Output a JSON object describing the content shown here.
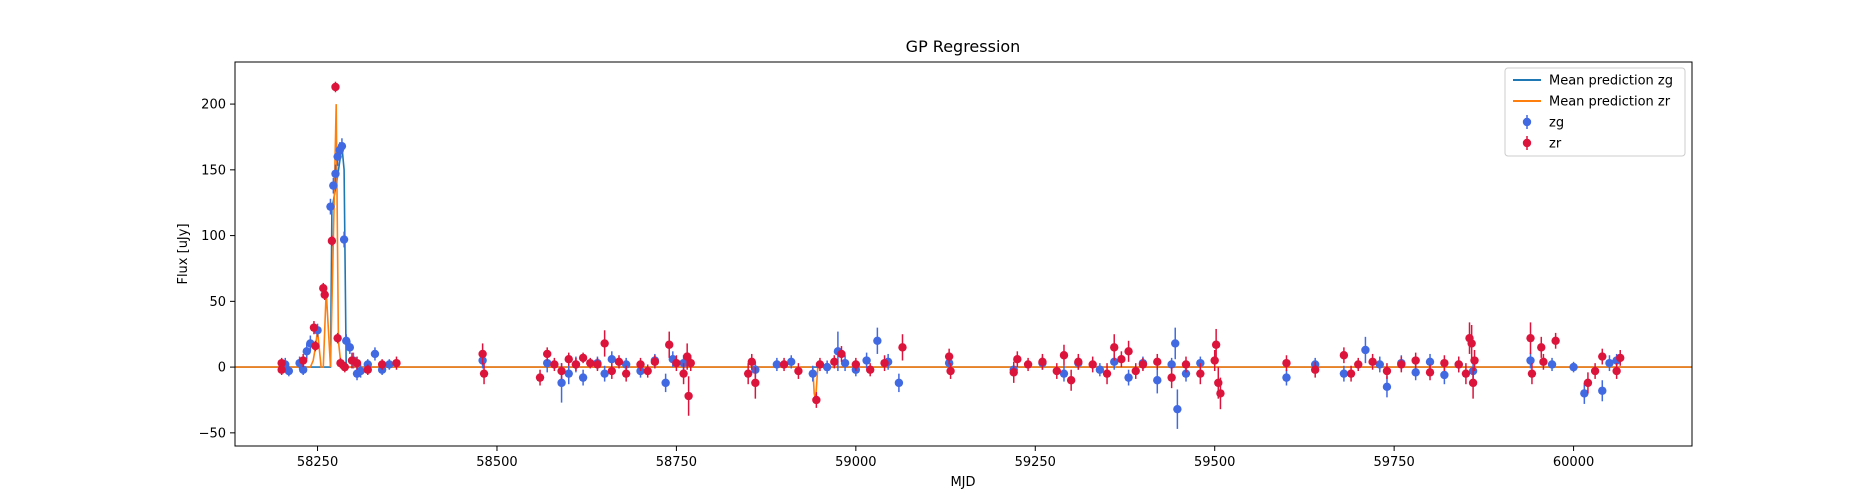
{
  "chart_data": {
    "type": "scatter",
    "title": "GP Regression",
    "xlabel": "MJD",
    "ylabel": "Flux [uJy]",
    "xlim": [
      58135,
      60165
    ],
    "ylim": [
      -60,
      232
    ],
    "xticks": [
      58250,
      58500,
      58750,
      59000,
      59250,
      59500,
      59750,
      60000
    ],
    "yticks": [
      -50,
      0,
      50,
      100,
      150,
      200
    ],
    "legend": {
      "position": "top-right",
      "entries": [
        {
          "label": "Mean prediction zg",
          "kind": "line",
          "color": "#1f77b4"
        },
        {
          "label": "Mean prediction zr",
          "kind": "line",
          "color": "#ff7f0e"
        },
        {
          "label": "zg",
          "kind": "errorbar",
          "color": "#4169e1"
        },
        {
          "label": "zr",
          "kind": "errorbar",
          "color": "#dc143c"
        }
      ]
    },
    "mean_prediction": [
      {
        "name": "Mean prediction zg",
        "color": "#1f77b4",
        "x": [
          58135,
          58268,
          58270,
          58278,
          58284,
          58287,
          58290,
          58292,
          60165
        ],
        "y": [
          0,
          0,
          120,
          145,
          168,
          150,
          0,
          0,
          0
        ]
      },
      {
        "name": "Mean prediction zr",
        "color": "#ff7f0e",
        "x": [
          58135,
          58240,
          58244,
          58247,
          58250,
          58255,
          58258,
          58262,
          58268,
          58272,
          58276,
          58279,
          58283,
          58287,
          58940,
          58942,
          58944,
          58947,
          60165
        ],
        "y": [
          0,
          0,
          5,
          15,
          28,
          0,
          0,
          58,
          0,
          95,
          200,
          20,
          0,
          0,
          0,
          -20,
          -25,
          0,
          0
        ]
      }
    ],
    "series": [
      {
        "name": "zg",
        "color": "#4169e1",
        "points": [
          [
            58205,
            2,
            5
          ],
          [
            58210,
            -3,
            4
          ],
          [
            58225,
            3,
            5
          ],
          [
            58230,
            -2,
            4
          ],
          [
            58235,
            12,
            6
          ],
          [
            58240,
            18,
            6
          ],
          [
            58250,
            28,
            5
          ],
          [
            58268,
            122,
            6
          ],
          [
            58272,
            138,
            6
          ],
          [
            58275,
            147,
            7
          ],
          [
            58278,
            160,
            7
          ],
          [
            58281,
            165,
            6
          ],
          [
            58284,
            168,
            6
          ],
          [
            58287,
            97,
            6
          ],
          [
            58290,
            20,
            5
          ],
          [
            58295,
            15,
            5
          ],
          [
            58300,
            5,
            6
          ],
          [
            58305,
            -5,
            5
          ],
          [
            58310,
            -3,
            5
          ],
          [
            58320,
            2,
            4
          ],
          [
            58330,
            10,
            5
          ],
          [
            58340,
            -2,
            4
          ],
          [
            58350,
            2,
            4
          ],
          [
            58480,
            5,
            6
          ],
          [
            58570,
            3,
            7
          ],
          [
            58590,
            -12,
            15
          ],
          [
            58600,
            -5,
            8
          ],
          [
            58610,
            2,
            6
          ],
          [
            58620,
            -8,
            6
          ],
          [
            58640,
            3,
            5
          ],
          [
            58650,
            -5,
            6
          ],
          [
            58660,
            6,
            6
          ],
          [
            58680,
            2,
            5
          ],
          [
            58700,
            -3,
            5
          ],
          [
            58720,
            5,
            5
          ],
          [
            58735,
            -12,
            7
          ],
          [
            58745,
            6,
            6
          ],
          [
            58760,
            3,
            6
          ],
          [
            58860,
            -2,
            6
          ],
          [
            58890,
            2,
            5
          ],
          [
            58910,
            4,
            5
          ],
          [
            58940,
            -5,
            6
          ],
          [
            58960,
            0,
            5
          ],
          [
            58975,
            12,
            15
          ],
          [
            58985,
            3,
            6
          ],
          [
            59000,
            -2,
            5
          ],
          [
            59015,
            5,
            6
          ],
          [
            59030,
            20,
            10
          ],
          [
            59045,
            4,
            6
          ],
          [
            59060,
            -12,
            7
          ],
          [
            59130,
            3,
            6
          ],
          [
            59220,
            -2,
            6
          ],
          [
            59260,
            3,
            5
          ],
          [
            59290,
            -5,
            6
          ],
          [
            59310,
            3,
            5
          ],
          [
            59340,
            -2,
            5
          ],
          [
            59360,
            4,
            6
          ],
          [
            59380,
            -8,
            6
          ],
          [
            59400,
            3,
            5
          ],
          [
            59420,
            -10,
            10
          ],
          [
            59440,
            2,
            5
          ],
          [
            59445,
            18,
            12
          ],
          [
            59448,
            -32,
            15
          ],
          [
            59460,
            -5,
            6
          ],
          [
            59480,
            3,
            5
          ],
          [
            59600,
            -8,
            6
          ],
          [
            59640,
            2,
            5
          ],
          [
            59680,
            -5,
            6
          ],
          [
            59710,
            13,
            10
          ],
          [
            59730,
            2,
            6
          ],
          [
            59740,
            -15,
            8
          ],
          [
            59760,
            3,
            6
          ],
          [
            59780,
            -4,
            6
          ],
          [
            59800,
            4,
            6
          ],
          [
            59820,
            -6,
            7
          ],
          [
            59840,
            2,
            6
          ],
          [
            59860,
            -3,
            6
          ],
          [
            59940,
            5,
            6
          ],
          [
            59970,
            2,
            5
          ],
          [
            60000,
            0,
            4
          ],
          [
            60015,
            -20,
            8
          ],
          [
            60040,
            -18,
            8
          ],
          [
            60050,
            3,
            6
          ],
          [
            60060,
            5,
            5
          ]
        ]
      },
      {
        "name": "zr",
        "color": "#dc143c",
        "points": [
          [
            58200,
            -2,
            4
          ],
          [
            58200,
            3,
            4
          ],
          [
            58230,
            5,
            5
          ],
          [
            58245,
            30,
            5
          ],
          [
            58247,
            16,
            4
          ],
          [
            58258,
            60,
            4
          ],
          [
            58260,
            55,
            4
          ],
          [
            58270,
            96,
            4
          ],
          [
            58275,
            213,
            4
          ],
          [
            58278,
            22,
            4
          ],
          [
            58282,
            3,
            4
          ],
          [
            58288,
            0,
            4
          ],
          [
            58298,
            5,
            6
          ],
          [
            58305,
            3,
            5
          ],
          [
            58320,
            -2,
            4
          ],
          [
            58340,
            2,
            4
          ],
          [
            58360,
            3,
            5
          ],
          [
            58480,
            10,
            8
          ],
          [
            58482,
            -5,
            8
          ],
          [
            58560,
            -8,
            6
          ],
          [
            58570,
            10,
            5
          ],
          [
            58580,
            2,
            5
          ],
          [
            58590,
            -3,
            6
          ],
          [
            58600,
            6,
            5
          ],
          [
            58610,
            2,
            5
          ],
          [
            58620,
            7,
            4
          ],
          [
            58630,
            3,
            4
          ],
          [
            58640,
            2,
            5
          ],
          [
            58650,
            18,
            10
          ],
          [
            58660,
            -3,
            6
          ],
          [
            58670,
            4,
            5
          ],
          [
            58680,
            -5,
            6
          ],
          [
            58700,
            2,
            5
          ],
          [
            58710,
            -3,
            5
          ],
          [
            58720,
            4,
            5
          ],
          [
            58740,
            17,
            10
          ],
          [
            58750,
            3,
            6
          ],
          [
            58760,
            -5,
            8
          ],
          [
            58765,
            8,
            10
          ],
          [
            58767,
            -22,
            15
          ],
          [
            58770,
            3,
            6
          ],
          [
            58850,
            -5,
            8
          ],
          [
            58855,
            4,
            6
          ],
          [
            58860,
            -12,
            12
          ],
          [
            58900,
            2,
            5
          ],
          [
            58920,
            -3,
            6
          ],
          [
            58945,
            -25,
            6
          ],
          [
            58950,
            2,
            5
          ],
          [
            58970,
            4,
            5
          ],
          [
            58980,
            10,
            6
          ],
          [
            59000,
            2,
            5
          ],
          [
            59020,
            -2,
            5
          ],
          [
            59040,
            3,
            6
          ],
          [
            59065,
            15,
            10
          ],
          [
            59130,
            8,
            6
          ],
          [
            59132,
            -3,
            6
          ],
          [
            59220,
            -4,
            8
          ],
          [
            59225,
            6,
            6
          ],
          [
            59240,
            2,
            5
          ],
          [
            59260,
            4,
            6
          ],
          [
            59280,
            -3,
            6
          ],
          [
            59290,
            9,
            8
          ],
          [
            59300,
            -10,
            8
          ],
          [
            59310,
            4,
            6
          ],
          [
            59330,
            2,
            6
          ],
          [
            59350,
            -5,
            8
          ],
          [
            59360,
            15,
            10
          ],
          [
            59370,
            6,
            6
          ],
          [
            59380,
            12,
            8
          ],
          [
            59390,
            -3,
            6
          ],
          [
            59400,
            2,
            5
          ],
          [
            59420,
            4,
            6
          ],
          [
            59440,
            -8,
            8
          ],
          [
            59460,
            2,
            6
          ],
          [
            59480,
            -5,
            8
          ],
          [
            59500,
            5,
            8
          ],
          [
            59502,
            17,
            12
          ],
          [
            59505,
            -12,
            12
          ],
          [
            59508,
            -20,
            12
          ],
          [
            59600,
            3,
            6
          ],
          [
            59640,
            -2,
            6
          ],
          [
            59680,
            9,
            6
          ],
          [
            59690,
            -5,
            6
          ],
          [
            59700,
            2,
            5
          ],
          [
            59720,
            4,
            6
          ],
          [
            59740,
            -3,
            6
          ],
          [
            59760,
            2,
            6
          ],
          [
            59780,
            5,
            6
          ],
          [
            59800,
            -4,
            6
          ],
          [
            59820,
            3,
            6
          ],
          [
            59840,
            2,
            6
          ],
          [
            59850,
            -5,
            8
          ],
          [
            59855,
            22,
            12
          ],
          [
            59858,
            18,
            14
          ],
          [
            59860,
            -12,
            12
          ],
          [
            59862,
            5,
            8
          ],
          [
            59940,
            22,
            12
          ],
          [
            59942,
            -5,
            8
          ],
          [
            59955,
            15,
            8
          ],
          [
            59958,
            4,
            6
          ],
          [
            59975,
            20,
            6
          ],
          [
            60020,
            -12,
            8
          ],
          [
            60030,
            -3,
            6
          ],
          [
            60040,
            8,
            6
          ],
          [
            60060,
            -3,
            6
          ],
          [
            60065,
            7,
            6
          ]
        ]
      }
    ]
  }
}
